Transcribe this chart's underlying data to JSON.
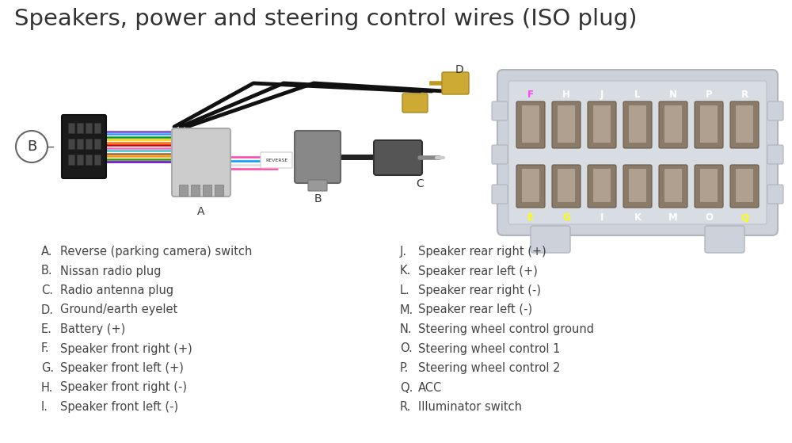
{
  "title": "Speakers, power and steering control wires (ISO plug)",
  "title_fontsize": 21,
  "title_color": "#333333",
  "background_color": "#ffffff",
  "left_items": [
    [
      "A.",
      "Reverse (parking camera) switch"
    ],
    [
      "B.",
      "Nissan radio plug"
    ],
    [
      "C.",
      "Radio antenna plug"
    ],
    [
      "D.",
      "Ground/earth eyelet"
    ],
    [
      "E.",
      "Battery (+)"
    ],
    [
      "F.",
      "Speaker front right (+)"
    ],
    [
      "G.",
      "Speaker front left (+)"
    ],
    [
      "H.",
      "Speaker front right (-)"
    ],
    [
      "I.",
      "Speaker front left (-)"
    ]
  ],
  "right_items": [
    [
      "J.",
      "Speaker rear right (+)"
    ],
    [
      "K.",
      "Speaker rear left (+)"
    ],
    [
      "L.",
      "Speaker rear right (-)"
    ],
    [
      "M.",
      "Speaker rear left (-)"
    ],
    [
      "N.",
      "Steering wheel control ground"
    ],
    [
      "O.",
      "Steering wheel control 1"
    ],
    [
      "P.",
      "Steering wheel control 2"
    ],
    [
      "Q.",
      "ACC"
    ],
    [
      "R.",
      "Illuminator switch"
    ]
  ],
  "list_fontsize": 10.5,
  "list_color": "#444444",
  "connector_labels_top": [
    "F",
    "H",
    "J",
    "L",
    "N",
    "P",
    "R"
  ],
  "connector_labels_bottom": [
    "E",
    "G",
    "I",
    "K",
    "M",
    "O",
    "Q"
  ],
  "connector_top_colors": [
    "#ff44ff",
    "#ffffff",
    "#ffffff",
    "#ffffff",
    "#ffffff",
    "#ffffff",
    "#ffffff"
  ],
  "connector_bottom_colors": [
    "#ffff00",
    "#ffff00",
    "#ffffff",
    "#ffffff",
    "#ffffff",
    "#ffffff",
    "#ffff00"
  ]
}
